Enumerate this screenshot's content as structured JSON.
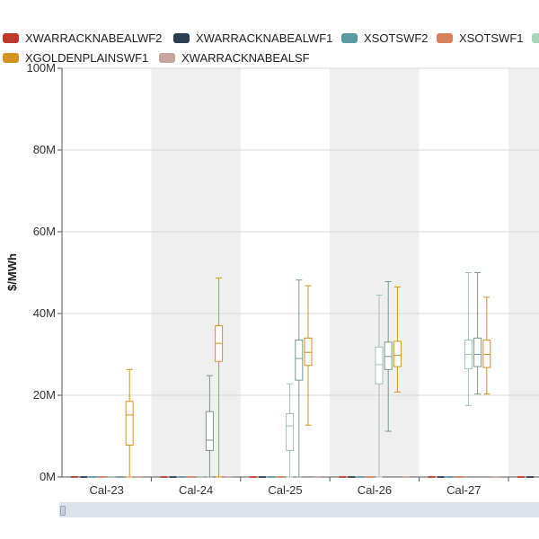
{
  "legend": [
    {
      "name": "XWARRACKNABEALWF2",
      "color": "#c0392b"
    },
    {
      "name": "XWARRACKNABEALWF1",
      "color": "#2c3e50"
    },
    {
      "name": "XSOTSWF2",
      "color": "#5b9aa0"
    },
    {
      "name": "XSOTSWF1",
      "color": "#d9805f"
    },
    {
      "name": "",
      "color": "#a8d5ba"
    },
    {
      "name": "XGOLDENPLAINSWF1",
      "color": "#d4931f"
    },
    {
      "name": "XWARRACKNABEALSF",
      "color": "#c4a69f"
    }
  ],
  "chart_data": {
    "type": "boxplot",
    "categories": [
      "Cal-23",
      "Cal-24",
      "Cal-25",
      "Cal-26",
      "Cal-27",
      "C"
    ],
    "ylabel": "$/MWh",
    "ylim": [
      0,
      100000000
    ],
    "yticks": [
      {
        "value": 0,
        "label": "0M"
      },
      {
        "value": 20000000,
        "label": "20M"
      },
      {
        "value": 40000000,
        "label": "40M"
      },
      {
        "value": 60000000,
        "label": "60M"
      },
      {
        "value": 80000000,
        "label": "80M"
      },
      {
        "value": 100000000,
        "label": "100M"
      }
    ],
    "series": [
      {
        "name": "XWARRACKNABEALWF2",
        "color": "#c0392b",
        "boxes": [
          [
            0,
            0,
            0,
            0,
            0
          ],
          [
            0,
            0,
            0,
            0,
            0
          ],
          [
            0,
            0,
            0,
            0,
            0
          ],
          [
            0,
            0,
            0,
            0,
            0
          ],
          [
            0,
            0,
            0,
            0,
            0
          ],
          [
            0,
            0,
            0,
            0,
            0
          ]
        ]
      },
      {
        "name": "XWARRACKNABEALWF1",
        "color": "#2c3e50",
        "boxes": [
          [
            0,
            0,
            0,
            0,
            0
          ],
          [
            0,
            0,
            0,
            0,
            0
          ],
          [
            0,
            0,
            0,
            0,
            0
          ],
          [
            0,
            0,
            0,
            0,
            0
          ],
          [
            0,
            0,
            0,
            0,
            0
          ],
          [
            0,
            0,
            0,
            0,
            0
          ]
        ]
      },
      {
        "name": "XSOTSWF2",
        "color": "#5b9aa0",
        "boxes": [
          [
            0,
            0,
            0,
            0,
            0
          ],
          [
            0,
            0,
            0,
            0,
            0
          ],
          [
            0,
            0,
            0,
            0,
            0
          ],
          [
            0,
            0,
            0,
            0,
            0
          ],
          [
            0,
            0,
            0,
            0,
            0
          ],
          null
        ]
      },
      {
        "name": "XSOTSWF1",
        "color": "#d9805f",
        "boxes": [
          [
            0,
            0,
            0,
            0,
            0
          ],
          [
            0,
            0,
            0,
            0,
            0
          ],
          [
            0,
            0,
            0,
            0,
            0
          ],
          [
            0,
            0,
            0,
            0,
            0
          ],
          [
            0,
            0,
            0,
            0,
            0
          ],
          null
        ]
      },
      {
        "name": "",
        "color": "#9fc5b0",
        "boxes": [
          [
            0,
            0,
            0,
            0,
            0
          ],
          [
            0,
            0,
            0,
            0,
            0
          ],
          [
            0,
            6500000,
            12500000,
            15500000,
            22800000
          ],
          [
            0,
            22800000,
            27500000,
            31800000,
            44500000
          ],
          [
            17500000,
            26500000,
            30000000,
            33500000,
            50000000
          ],
          null
        ]
      },
      {
        "name": "",
        "color": "#7a9a8a",
        "boxes": [
          [
            0,
            0,
            0,
            0,
            0
          ],
          [
            0,
            6500000,
            9000000,
            16000000,
            24800000
          ],
          [
            0,
            23700000,
            29000000,
            33500000,
            48200000
          ],
          [
            11200000,
            26300000,
            29500000,
            33000000,
            47800000
          ],
          [
            20300000,
            27000000,
            30000000,
            34000000,
            50000000
          ],
          null
        ]
      },
      {
        "name": "XGOLDENPLAINSWF1",
        "color": "#d4931f",
        "boxes": [
          [
            0,
            7800000,
            15200000,
            18500000,
            26300000
          ],
          [
            0,
            28300000,
            32700000,
            37000000,
            48700000
          ],
          [
            12700000,
            27300000,
            30500000,
            34000000,
            46800000
          ],
          [
            20800000,
            27000000,
            29800000,
            33200000,
            46500000
          ],
          [
            20300000,
            26800000,
            30000000,
            33500000,
            44000000
          ],
          null
        ]
      },
      {
        "name": "XWARRACKNABEALSF",
        "color": "#c4a69f",
        "boxes": [
          [
            0,
            0,
            0,
            0,
            0
          ],
          [
            0,
            0,
            0,
            0,
            0
          ],
          [
            0,
            0,
            0,
            0,
            0
          ],
          [
            0,
            0,
            0,
            0,
            0
          ],
          [
            0,
            0,
            0,
            0,
            0
          ],
          null
        ]
      }
    ],
    "grid": true,
    "legend_position": "top"
  }
}
